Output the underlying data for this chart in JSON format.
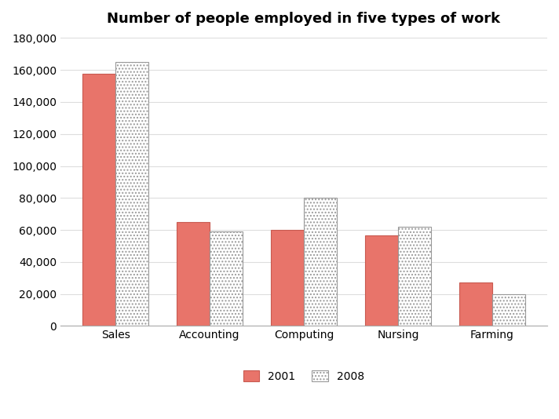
{
  "title": "Number of people employed in five types of work",
  "categories": [
    "Sales",
    "Accounting",
    "Computing",
    "Nursing",
    "Farming"
  ],
  "values_2001": [
    157500,
    65000,
    60000,
    56500,
    27000
  ],
  "values_2008": [
    165000,
    59000,
    80000,
    62000,
    20000
  ],
  "color_2001": "#E8746A",
  "color_2008": "#FFFFFF",
  "edge_2001": "#C85A50",
  "edge_2008": "#999999",
  "hatch_2008": "....",
  "ylim": [
    0,
    180000
  ],
  "yticks": [
    0,
    20000,
    40000,
    60000,
    80000,
    100000,
    120000,
    140000,
    160000,
    180000
  ],
  "bar_width": 0.35,
  "legend_labels": [
    "2001",
    "2008"
  ],
  "background_color": "#FFFFFF",
  "grid_color": "#DDDDDD",
  "title_fontsize": 13,
  "tick_fontsize": 10,
  "figsize": [
    7.12,
    5.34
  ],
  "dpi": 100
}
